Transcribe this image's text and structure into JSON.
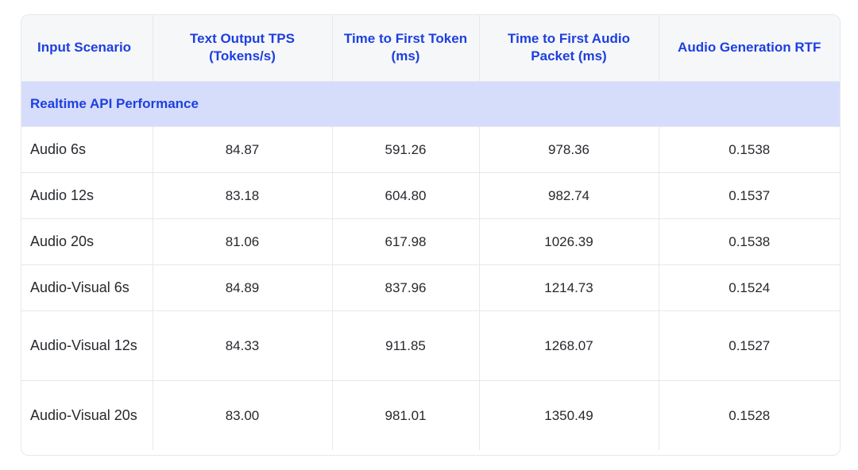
{
  "columns": [
    "Input Scenario",
    "Text Output TPS (Tokens/s)",
    "Time to First Token (ms)",
    "Time to First Audio Packet (ms)",
    "Audio Generation RTF"
  ],
  "section_title": "Realtime API Performance",
  "rows": [
    [
      "Audio 6s",
      "84.87",
      "591.26",
      "978.36",
      "0.1538"
    ],
    [
      "Audio 12s",
      "83.18",
      "604.80",
      "982.74",
      "0.1537"
    ],
    [
      "Audio 20s",
      "81.06",
      "617.98",
      "1026.39",
      "0.1538"
    ],
    [
      "Audio-Visual 6s",
      "84.89",
      "837.96",
      "1214.73",
      "0.1524"
    ],
    [
      "Audio-Visual 12s",
      "84.33",
      "911.85",
      "1268.07",
      "0.1527"
    ],
    [
      "Audio-Visual 20s",
      "83.00",
      "981.01",
      "1350.49",
      "0.1528"
    ]
  ]
}
